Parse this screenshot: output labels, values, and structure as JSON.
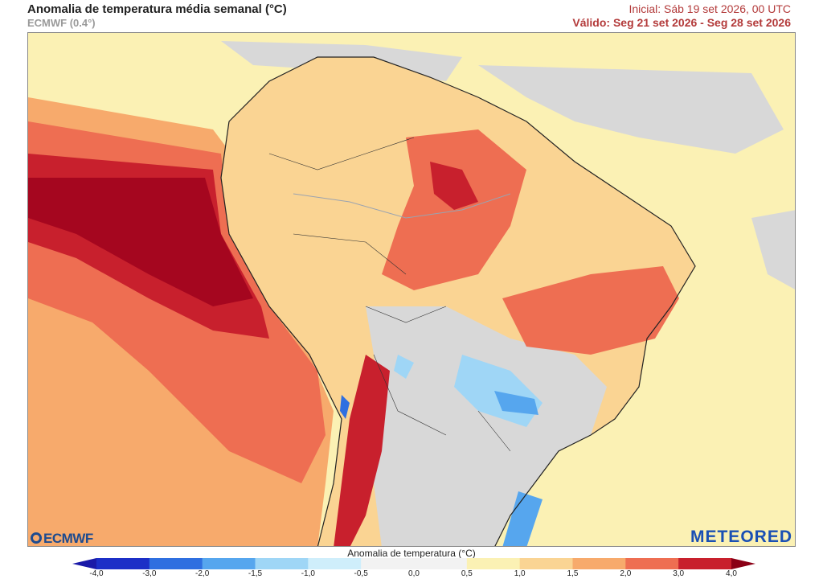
{
  "header": {
    "title": "Anomalia de temperatura média semanal (°C)",
    "model": "ECMWF (0.4°)",
    "initial": "Inicial: Sáb 19 set 2026, 00 UTC",
    "valid": "Válido: Seg 21 set 2026 - Seg 28 set 2026"
  },
  "map": {
    "region": "South America",
    "variable": "Weekly mean temperature anomaly"
  },
  "logos": {
    "left": "ECMWF",
    "right": "METEORED"
  },
  "legend": {
    "title": "Anomalia de temperatura (°C)",
    "ticks": [
      "-4,0",
      "-3,0",
      "-2,0",
      "-1,5",
      "-1,0",
      "-0,5",
      "0,0",
      "0,5",
      "1,0",
      "1,5",
      "2,0",
      "3,0",
      "4,0"
    ],
    "colors": [
      "#1c2fc7",
      "#2f6fe0",
      "#56a6ee",
      "#9fd6f6",
      "#cfeefb",
      "#f2f2f2",
      "#f2f2f2",
      "#fbf1b4",
      "#fad493",
      "#f7aa6c",
      "#ee6e52",
      "#c8202d"
    ],
    "arrow_low": "#1a1aa8",
    "arrow_high": "#8b0016"
  },
  "colors": {
    "ocean_warm": "#f7aa6c",
    "ocean_hot": "#ee6e52",
    "ocean_very_hot": "#c8202d",
    "ocean_extreme": "#a5061f",
    "land_neutral": "#d8d8d8",
    "pale": "#fbf1b4",
    "cold": "#56a6ee"
  }
}
